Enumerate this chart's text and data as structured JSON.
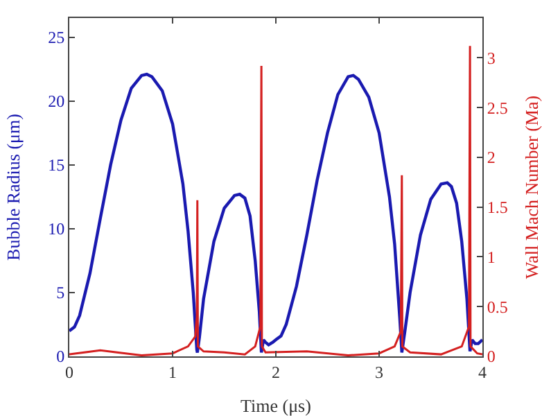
{
  "chart_data": {
    "type": "line",
    "xlabel": "Time (μs)",
    "ylabel": "Bubble Radius (μm)",
    "y2label": "Wall Mach Number (Ma)",
    "xlim": [
      0,
      4
    ],
    "xticks": [
      0,
      1,
      2,
      3,
      4
    ],
    "ylim": [
      0,
      26.5
    ],
    "yticks": [
      0,
      5,
      10,
      15,
      20,
      25
    ],
    "y2lim": [
      0,
      3.4
    ],
    "y2ticks": [
      0,
      0.5,
      1,
      1.5,
      2,
      2.5,
      3
    ],
    "marker": "none",
    "line_style": "solid",
    "series": [
      {
        "color": "#1a1ab0",
        "x": [
          0,
          0.05,
          0.1,
          0.2,
          0.3,
          0.4,
          0.5,
          0.6,
          0.7,
          0.75,
          0.8,
          0.9,
          1.0,
          1.1,
          1.15,
          1.2,
          1.235,
          1.24,
          1.26,
          1.3,
          1.4,
          1.5,
          1.6,
          1.65,
          1.7,
          1.75,
          1.8,
          1.84,
          1.86,
          1.88,
          1.9,
          1.93,
          1.97,
          2.0,
          2.05,
          2.1,
          2.2,
          2.3,
          2.4,
          2.5,
          2.6,
          2.7,
          2.75,
          2.8,
          2.9,
          3.0,
          3.1,
          3.15,
          3.2,
          3.22,
          3.25,
          3.3,
          3.4,
          3.5,
          3.6,
          3.66,
          3.7,
          3.75,
          3.8,
          3.85,
          3.88,
          3.9,
          3.93,
          3.96,
          4.0
        ],
        "values": [
          2.0,
          2.3,
          3.2,
          6.5,
          10.8,
          15,
          18.5,
          21,
          22,
          22.1,
          21.9,
          20.8,
          18.2,
          13.5,
          9.8,
          5,
          0.5,
          0.3,
          1.5,
          4.5,
          9,
          11.6,
          12.6,
          12.7,
          12.4,
          11,
          7.5,
          3.5,
          0.3,
          1.3,
          1.1,
          0.9,
          1.1,
          1.3,
          1.6,
          2.5,
          5.5,
          9.5,
          13.8,
          17.5,
          20.5,
          21.9,
          22,
          21.7,
          20.3,
          17.5,
          12.5,
          8.8,
          3,
          0.3,
          2,
          5,
          9.5,
          12.3,
          13.5,
          13.6,
          13.3,
          12,
          9,
          4.5,
          0.4,
          1.3,
          1.0,
          1.0,
          1.3
        ]
      },
      {
        "color": "#d42020",
        "axis": "y2",
        "x": [
          0,
          0.3,
          0.7,
          1.0,
          1.15,
          1.22,
          1.235,
          1.24,
          1.245,
          1.3,
          1.5,
          1.7,
          1.8,
          1.85,
          1.86,
          1.865,
          1.9,
          2.3,
          2.7,
          3.0,
          3.15,
          3.21,
          3.22,
          3.225,
          3.3,
          3.6,
          3.8,
          3.87,
          3.88,
          3.885,
          3.95,
          4.0
        ],
        "values": [
          0.02,
          0.06,
          0.01,
          0.03,
          0.1,
          0.2,
          0.4,
          1.57,
          0.1,
          0.05,
          0.04,
          0.02,
          0.1,
          0.3,
          2.92,
          0.1,
          0.04,
          0.05,
          0.01,
          0.03,
          0.1,
          0.25,
          1.82,
          0.1,
          0.04,
          0.02,
          0.1,
          0.3,
          3.12,
          0.1,
          0.03,
          0.02
        ]
      }
    ]
  }
}
